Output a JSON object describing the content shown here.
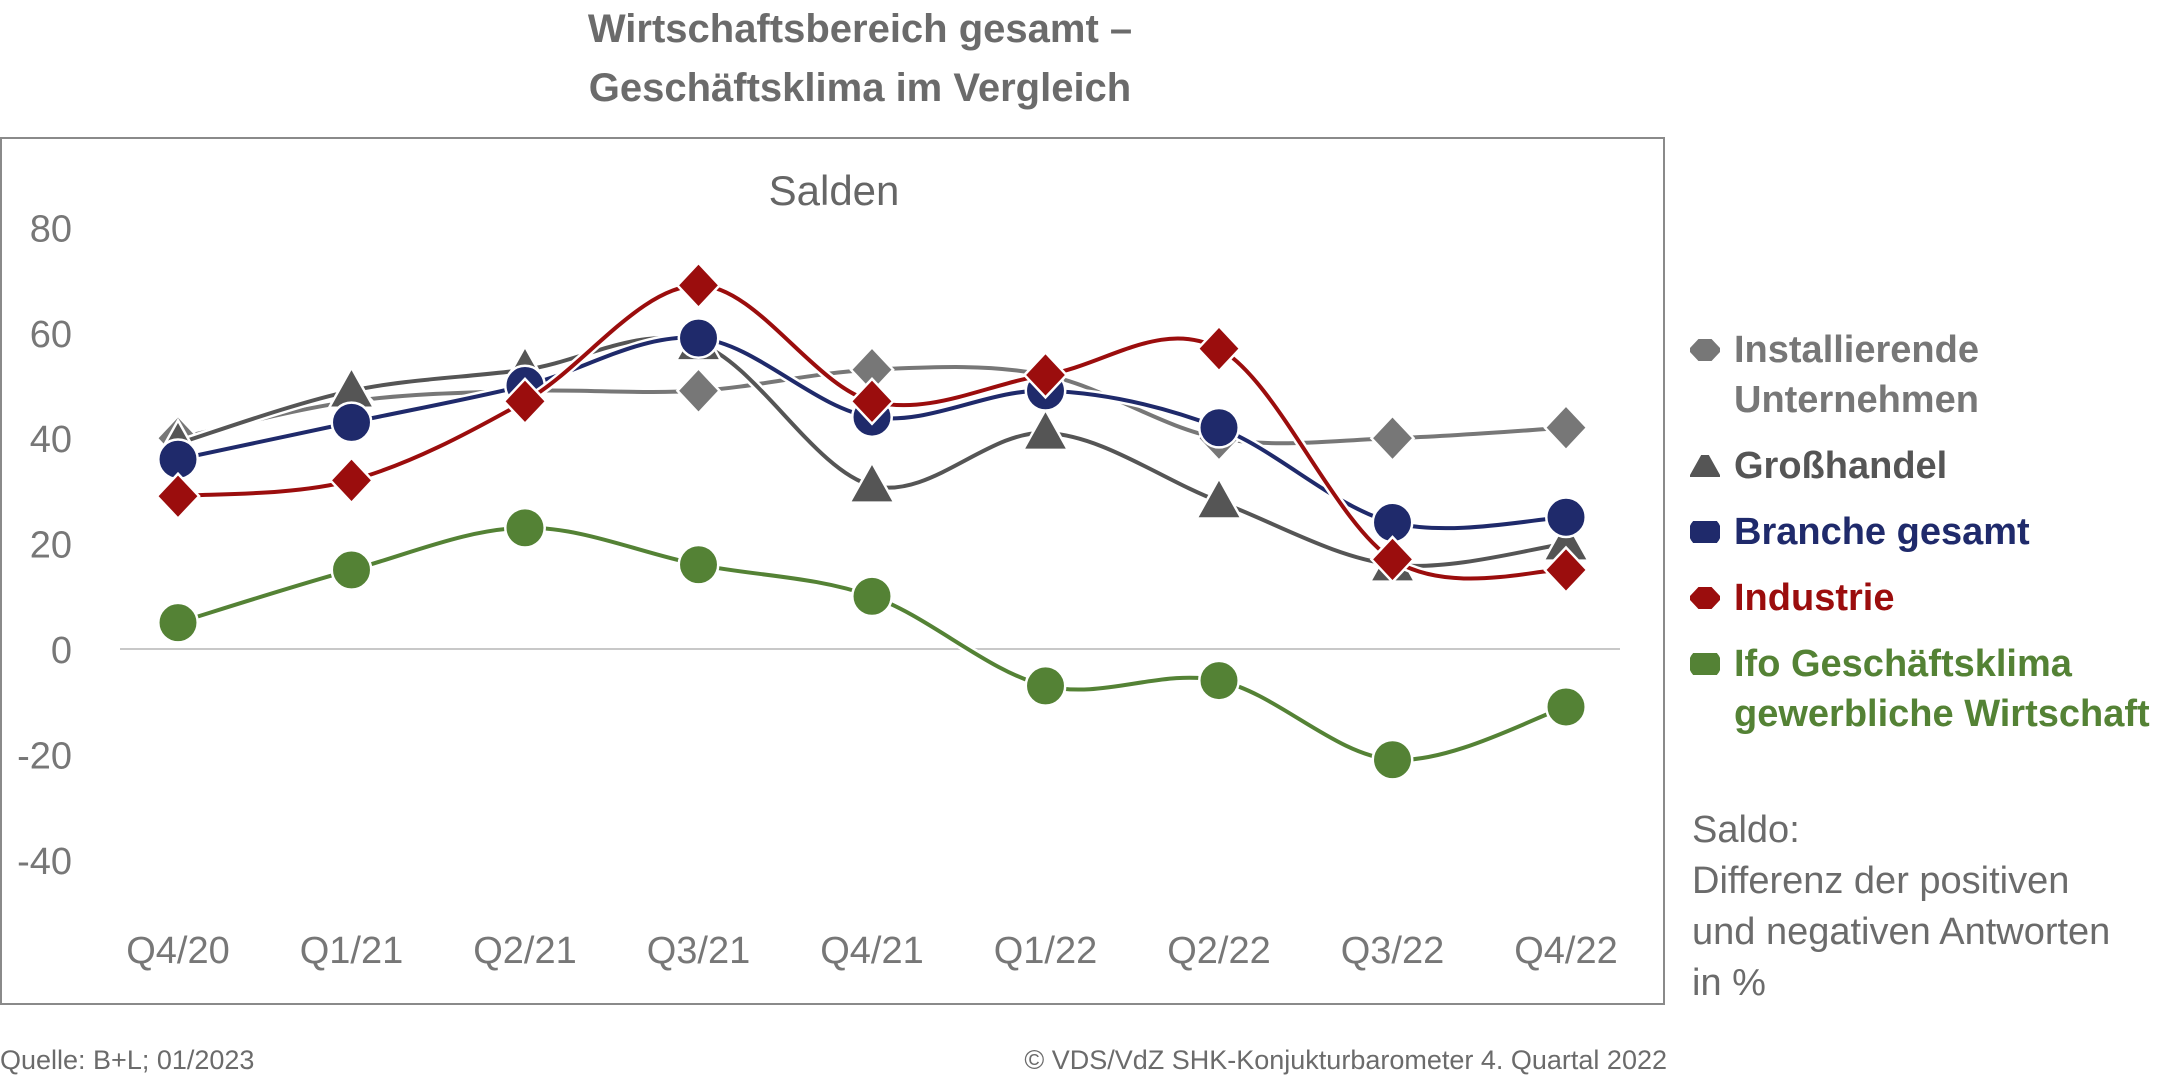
{
  "header": {
    "title_line1": "Wirtschaftsbereich gesamt –",
    "title_line2": "Geschäftsklima im Vergleich"
  },
  "chart_data": {
    "type": "line",
    "subtitle": "Salden",
    "categories": [
      "Q4/20",
      "Q1/21",
      "Q2/21",
      "Q3/21",
      "Q4/21",
      "Q1/22",
      "Q2/22",
      "Q3/22",
      "Q4/22"
    ],
    "ylim": [
      -40,
      80
    ],
    "yticks": [
      "80",
      "60",
      "40",
      "20",
      "0",
      "-20",
      "-40"
    ],
    "ytick_values": [
      80,
      60,
      40,
      20,
      0,
      -20,
      -40
    ],
    "grid": false,
    "legend_position": "right",
    "series": [
      {
        "name_lines": [
          "Installierende",
          "Unternehmen"
        ],
        "marker": "diamond",
        "color": "#777777",
        "values": [
          40,
          47,
          49,
          49,
          53,
          52,
          40,
          40,
          42
        ]
      },
      {
        "name_lines": [
          "Großhandel"
        ],
        "marker": "triangle",
        "color": "#555555",
        "values": [
          39,
          49,
          53,
          58,
          31,
          41,
          28,
          16,
          20
        ]
      },
      {
        "name_lines": [
          "Branche gesamt"
        ],
        "marker": "circle",
        "color": "#1f2a6b",
        "values": [
          36,
          43,
          50,
          59,
          44,
          49,
          42,
          24,
          25
        ]
      },
      {
        "name_lines": [
          "Industrie"
        ],
        "marker": "diamond",
        "color": "#9b0d0d",
        "values": [
          29,
          32,
          47,
          69,
          47,
          52,
          57,
          17,
          15
        ]
      },
      {
        "name_lines": [
          "Ifo Geschäftsklima",
          "gewerbliche Wirtschaft"
        ],
        "marker": "circle",
        "color": "#548235",
        "values": [
          5,
          15,
          23,
          16,
          10,
          -7,
          -6,
          -21,
          -11
        ]
      }
    ]
  },
  "note": {
    "lines": [
      "Saldo:",
      "Differenz der positiven",
      "und negativen Antworten",
      "in %"
    ]
  },
  "footer": {
    "source": "Quelle: B+L; 01/2023",
    "copyright": "© VDS/VdZ SHK-Konjukturbarometer 4. Quartal 2022"
  }
}
